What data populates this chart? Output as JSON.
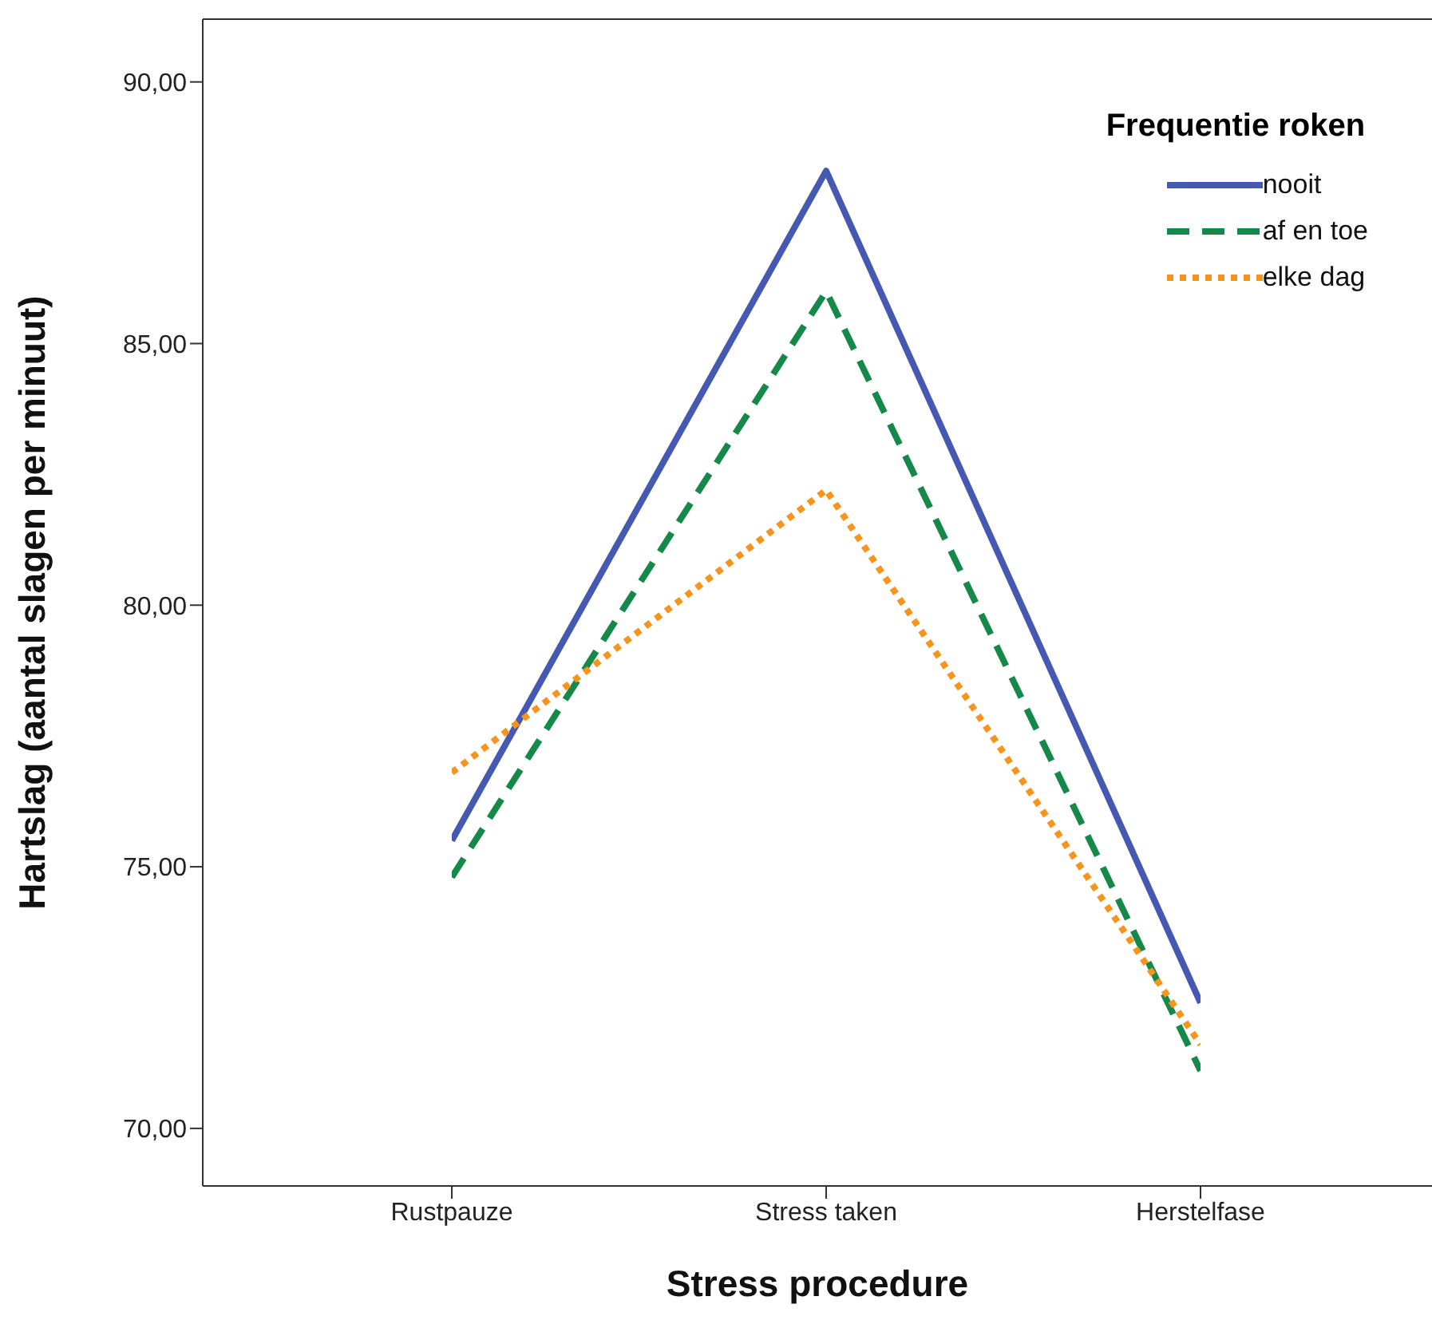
{
  "chart_data": {
    "type": "line",
    "xlabel": "Stress procedure",
    "ylabel": "Hartslag (aantal slagen per minuut)",
    "legend_title": "Frequentie roken",
    "categories": [
      "Rustpauze",
      "Stress taken",
      "Herstelfase"
    ],
    "series": [
      {
        "name": "nooit",
        "color": "#4559b0",
        "line_style": "solid",
        "values": [
          75.5,
          88.3,
          72.4
        ]
      },
      {
        "name": "af en toe",
        "color": "#16894a",
        "line_style": "dashed",
        "values": [
          74.8,
          86.0,
          71.1
        ]
      },
      {
        "name": "elke dag",
        "color": "#f7941d",
        "line_style": "dotted",
        "values": [
          76.8,
          82.2,
          71.6
        ]
      }
    ],
    "ylim": [
      68.9,
      91.2
    ],
    "yticks": [
      {
        "value": 70,
        "label": "70,00"
      },
      {
        "value": 75,
        "label": "75,00"
      },
      {
        "value": 80,
        "label": "80,00"
      },
      {
        "value": 85,
        "label": "85,00"
      },
      {
        "value": 90,
        "label": "90,00"
      }
    ],
    "grid": false,
    "legend": "top right",
    "marker": "none"
  }
}
